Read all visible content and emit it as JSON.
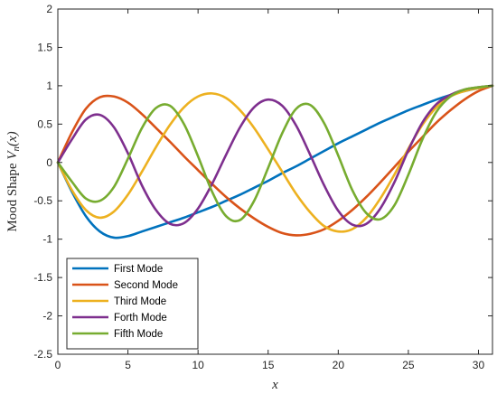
{
  "chart_data": {
    "type": "line",
    "xlabel": "x",
    "ylabel_text": "Mood Shape ",
    "ylabel_var": "V",
    "ylabel_sub": "n",
    "ylabel_arg": "(x)",
    "xlim": [
      0,
      31
    ],
    "ylim": [
      -2.5,
      2
    ],
    "xticks": [
      0,
      5,
      10,
      15,
      20,
      25,
      30
    ],
    "yticks": [
      -2.5,
      -2,
      -1.5,
      -1,
      -0.5,
      0,
      0.5,
      1,
      1.5,
      2
    ],
    "xtick_labels": [
      "0",
      "5",
      "10",
      "15",
      "20",
      "25",
      "30"
    ],
    "ytick_labels": [
      "-2.5",
      "-2",
      "-1.5",
      "-1",
      "-0.5",
      "0",
      "0.5",
      "1",
      "1.5",
      "2"
    ],
    "grid": false,
    "legend_position": "lower-left",
    "x": [
      0,
      1,
      2,
      3,
      4,
      5,
      6,
      7,
      8,
      9,
      10,
      11,
      12,
      13,
      14,
      15,
      16,
      17,
      18,
      19,
      20,
      21,
      22,
      23,
      24,
      25,
      26,
      27,
      28,
      29,
      30,
      31
    ],
    "series": [
      {
        "name": "First Mode",
        "color": "#0072BD",
        "values": [
          0,
          -0.38,
          -0.7,
          -0.9,
          -0.98,
          -0.96,
          -0.9,
          -0.84,
          -0.78,
          -0.72,
          -0.65,
          -0.58,
          -0.5,
          -0.42,
          -0.33,
          -0.24,
          -0.14,
          -0.05,
          0.05,
          0.15,
          0.25,
          0.34,
          0.43,
          0.52,
          0.6,
          0.68,
          0.75,
          0.82,
          0.88,
          0.93,
          0.97,
          1.0
        ]
      },
      {
        "name": "Second Mode",
        "color": "#D95319",
        "values": [
          0,
          0.39,
          0.7,
          0.85,
          0.86,
          0.78,
          0.63,
          0.45,
          0.27,
          0.08,
          -0.1,
          -0.28,
          -0.45,
          -0.6,
          -0.73,
          -0.84,
          -0.92,
          -0.95,
          -0.93,
          -0.87,
          -0.76,
          -0.62,
          -0.45,
          -0.26,
          -0.06,
          0.14,
          0.33,
          0.52,
          0.68,
          0.82,
          0.93,
          1.0
        ]
      },
      {
        "name": "Third Mode",
        "color": "#EDB120",
        "values": [
          0,
          -0.36,
          -0.62,
          -0.72,
          -0.64,
          -0.42,
          -0.12,
          0.2,
          0.49,
          0.72,
          0.86,
          0.9,
          0.84,
          0.68,
          0.45,
          0.17,
          -0.12,
          -0.41,
          -0.65,
          -0.83,
          -0.9,
          -0.87,
          -0.72,
          -0.47,
          -0.16,
          0.18,
          0.49,
          0.72,
          0.86,
          0.93,
          0.97,
          1.0
        ]
      },
      {
        "name": "Forth Mode",
        "color": "#7E2F8E",
        "values": [
          0,
          0.3,
          0.56,
          0.62,
          0.46,
          0.12,
          -0.3,
          -0.62,
          -0.8,
          -0.79,
          -0.6,
          -0.28,
          0.1,
          0.46,
          0.72,
          0.82,
          0.74,
          0.48,
          0.1,
          -0.3,
          -0.63,
          -0.81,
          -0.8,
          -0.6,
          -0.26,
          0.16,
          0.52,
          0.76,
          0.88,
          0.95,
          0.98,
          1.0
        ]
      },
      {
        "name": "Fifth Mode",
        "color": "#77AC30",
        "values": [
          0,
          -0.25,
          -0.47,
          -0.5,
          -0.32,
          0.05,
          0.45,
          0.71,
          0.74,
          0.5,
          0.08,
          -0.38,
          -0.7,
          -0.75,
          -0.5,
          -0.07,
          0.38,
          0.7,
          0.75,
          0.51,
          0.09,
          -0.36,
          -0.66,
          -0.74,
          -0.56,
          -0.16,
          0.3,
          0.66,
          0.86,
          0.95,
          0.98,
          1.0
        ]
      }
    ]
  }
}
